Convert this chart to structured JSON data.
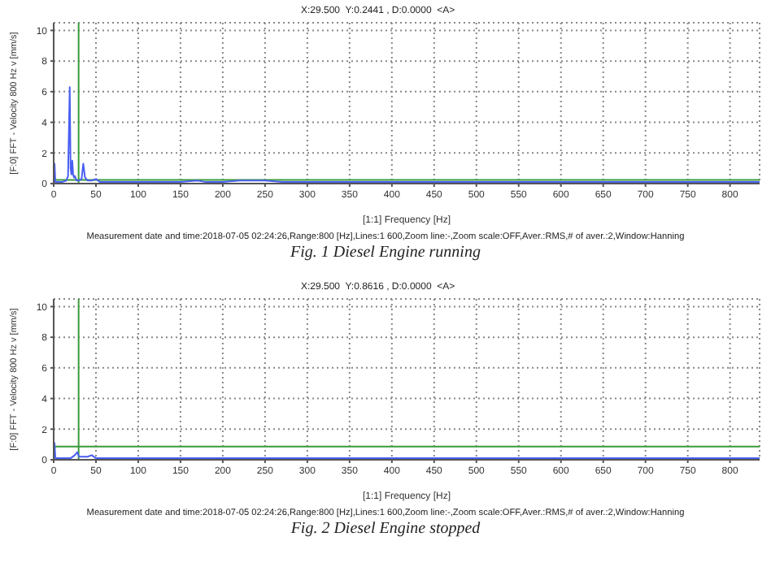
{
  "chart_data": [
    {
      "type": "line",
      "title": "Fig. 1 Diesel Engine running",
      "xlabel": "[1:1] Frequency [Hz]",
      "ylabel": "[F:0] FFT - Velocity 800 Hz v [mm/s]",
      "annotations": [
        "X:29.500  Y:0.2441 , D:0.0000  <A>",
        "Measurement date and time:2018-07-05 02:24:26,Range:800 [Hz],Lines:1 600,Zoom line:-,Zoom scale:OFF,Aver.:RMS,# of aver.:2,Window:Hanning"
      ],
      "xlim": [
        0,
        835
      ],
      "xticks": [
        0,
        50,
        100,
        150,
        200,
        250,
        300,
        350,
        400,
        450,
        500,
        550,
        600,
        650,
        700,
        750,
        800
      ],
      "ylim": [
        0,
        10.5
      ],
      "yticks": [
        0,
        2,
        4,
        6,
        8,
        10
      ],
      "grid": true,
      "marker": "none",
      "line_style": "solid",
      "ref_lines": [
        {
          "axis": "x",
          "value": 29.5,
          "color": "#3a9a3a"
        },
        {
          "axis": "y",
          "value": 0.2441,
          "color": "#3a9a3a"
        }
      ],
      "series": [
        {
          "color": "#4a5ef0",
          "x": [
            0,
            1,
            2,
            5,
            10,
            15,
            17,
            19,
            20,
            21,
            22,
            23,
            24,
            25,
            27,
            30,
            33,
            35,
            37,
            40,
            45,
            50,
            55,
            60,
            80,
            100,
            120,
            150,
            170,
            180,
            200,
            220,
            250,
            270,
            300,
            350,
            400,
            450,
            500,
            550,
            600,
            650,
            700,
            750,
            800,
            835
          ],
          "values": [
            0.2,
            1.3,
            0.1,
            0.1,
            0.1,
            0.2,
            0.5,
            6.3,
            1.0,
            0.6,
            1.5,
            0.6,
            0.4,
            0.5,
            0.2,
            0.2,
            0.3,
            1.3,
            0.4,
            0.2,
            0.2,
            0.3,
            0.1,
            0.1,
            0.1,
            0.1,
            0.1,
            0.1,
            0.2,
            0.1,
            0.1,
            0.2,
            0.2,
            0.1,
            0.1,
            0.1,
            0.1,
            0.1,
            0.1,
            0.1,
            0.1,
            0.1,
            0.1,
            0.1,
            0.1,
            0.1
          ]
        }
      ]
    },
    {
      "type": "line",
      "title": "Fig. 2 Diesel Engine stopped",
      "xlabel": "[1:1] Frequency [Hz]",
      "ylabel": "[F:0] FFT - Velocity 800 Hz v [mm/s]",
      "annotations": [
        "X:29.500  Y:0.8616 , D:0.0000  <A>",
        "Measurement date and time:2018-07-05 02:24:26,Range:800 [Hz],Lines:1 600,Zoom line:-,Zoom scale:OFF,Aver.:RMS,# of aver.:2,Window:Hanning"
      ],
      "xlim": [
        0,
        835
      ],
      "xticks": [
        0,
        50,
        100,
        150,
        200,
        250,
        300,
        350,
        400,
        450,
        500,
        550,
        600,
        650,
        700,
        750,
        800
      ],
      "ylim": [
        0,
        10.5
      ],
      "yticks": [
        0,
        2,
        4,
        6,
        8,
        10
      ],
      "grid": true,
      "marker": "none",
      "line_style": "solid",
      "ref_lines": [
        {
          "axis": "x",
          "value": 29.5,
          "color": "#3a9a3a"
        },
        {
          "axis": "y",
          "value": 0.8616,
          "color": "#3a9a3a"
        }
      ],
      "series": [
        {
          "color": "#4a5ef0",
          "x": [
            0,
            1,
            2,
            5,
            10,
            20,
            25,
            28,
            30,
            35,
            40,
            45,
            50,
            60,
            100,
            150,
            200,
            250,
            300,
            400,
            500,
            600,
            700,
            800,
            835
          ],
          "values": [
            0.2,
            1.1,
            0.1,
            0.1,
            0.1,
            0.1,
            0.3,
            0.5,
            0.2,
            0.2,
            0.2,
            0.3,
            0.1,
            0.1,
            0.1,
            0.1,
            0.1,
            0.1,
            0.1,
            0.1,
            0.1,
            0.1,
            0.1,
            0.1,
            0.1
          ]
        }
      ]
    }
  ]
}
